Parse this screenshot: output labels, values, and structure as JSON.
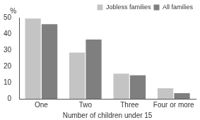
{
  "chart_data": {
    "type": "bar",
    "categories": [
      "One",
      "Two",
      "Three",
      "Four or more"
    ],
    "series": [
      {
        "name": "Jobless families",
        "color": "#c4c4c4",
        "values": [
          49.5,
          28.5,
          15.5,
          6.5
        ]
      },
      {
        "name": "All families",
        "color": "#7f7f7f",
        "values": [
          46,
          36.5,
          14.5,
          3.5
        ]
      }
    ],
    "xlabel": "Number of children under 15",
    "ylabel": "%",
    "ylim": [
      0,
      50
    ],
    "yticks": [
      0,
      10,
      20,
      30,
      40,
      50
    ],
    "grid": false,
    "legend": "top right"
  }
}
